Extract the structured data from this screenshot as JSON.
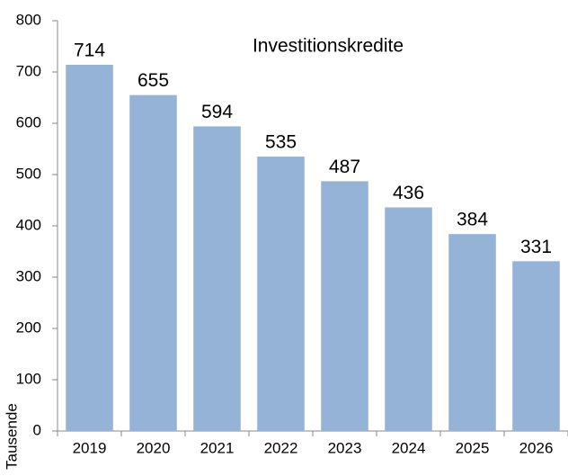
{
  "chart_data": {
    "type": "bar",
    "title": "Investitionskredite",
    "y_label": "Tausende",
    "categories": [
      "2019",
      "2020",
      "2021",
      "2022",
      "2023",
      "2024",
      "2025",
      "2026"
    ],
    "values": [
      714,
      655,
      594,
      535,
      487,
      436,
      384,
      331
    ],
    "color": "#95b3d7",
    "ylim": [
      0,
      800
    ],
    "yticks": [
      0,
      100,
      200,
      300,
      400,
      500,
      600,
      700,
      800
    ],
    "grid": false
  }
}
